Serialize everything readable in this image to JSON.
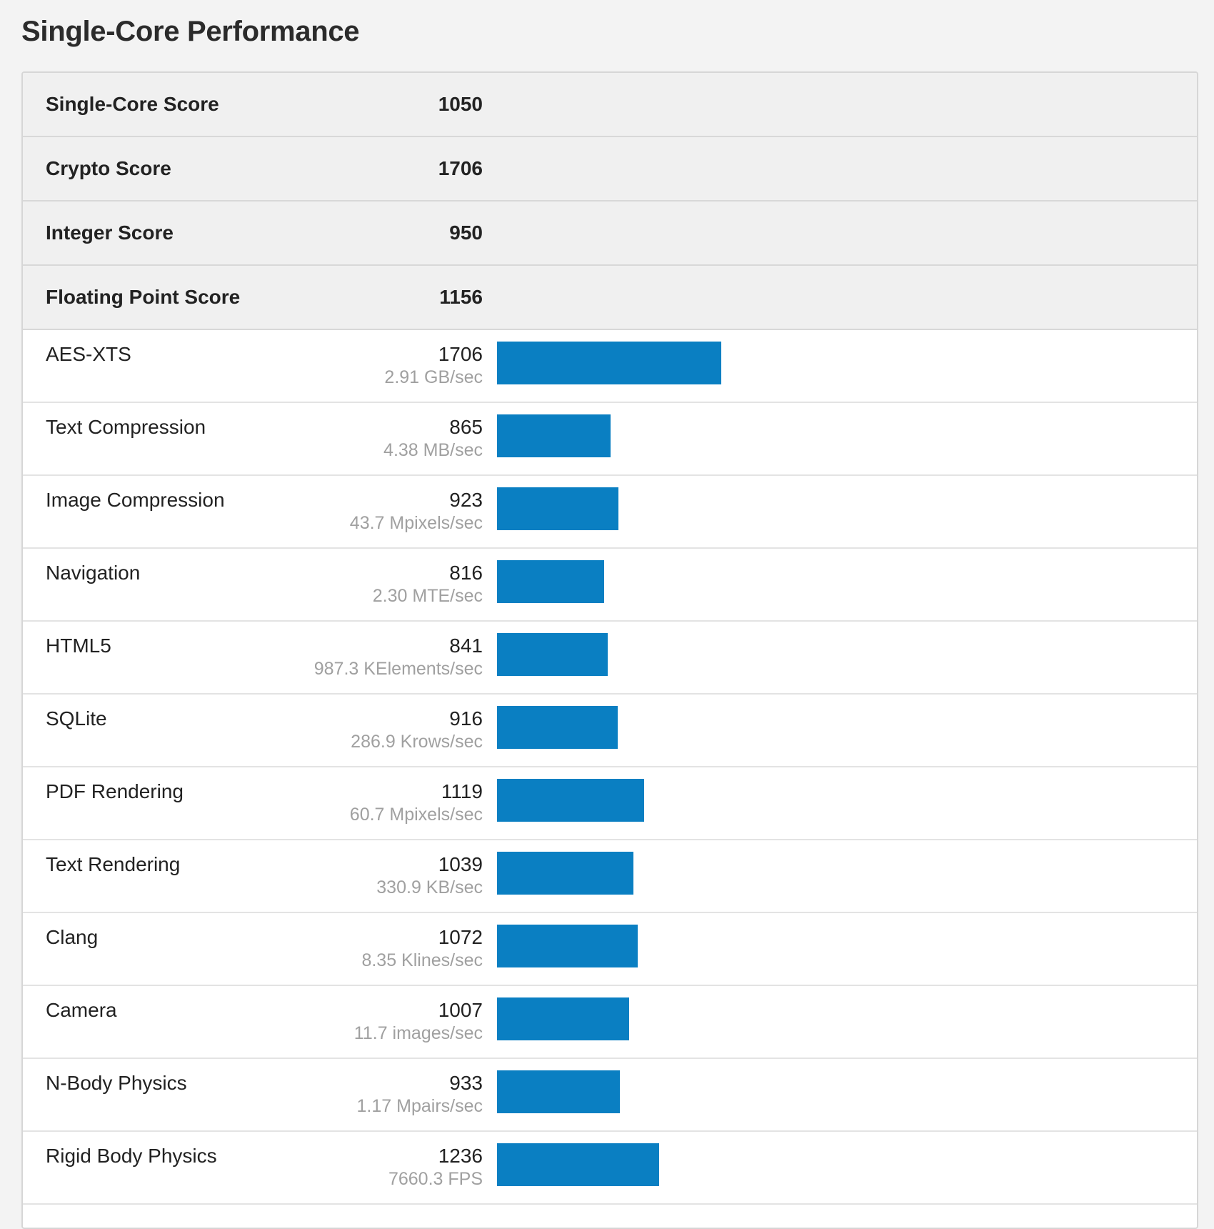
{
  "title": "Single-Core Performance",
  "accent_color": "#0a7fc2",
  "scores": [
    {
      "label": "Single-Core Score",
      "value": "1050"
    },
    {
      "label": "Crypto Score",
      "value": "1706"
    },
    {
      "label": "Integer Score",
      "value": "950"
    },
    {
      "label": "Floating Point Score",
      "value": "1156"
    }
  ],
  "benchmarks": [
    {
      "name": "AES-XTS",
      "score": "1706",
      "rate": "2.91 GB/sec",
      "bar_value": 1706
    },
    {
      "name": "Text Compression",
      "score": "865",
      "rate": "4.38 MB/sec",
      "bar_value": 865
    },
    {
      "name": "Image Compression",
      "score": "923",
      "rate": "43.7 Mpixels/sec",
      "bar_value": 923
    },
    {
      "name": "Navigation",
      "score": "816",
      "rate": "2.30 MTE/sec",
      "bar_value": 816
    },
    {
      "name": "HTML5",
      "score": "841",
      "rate": "987.3 KElements/sec",
      "bar_value": 841
    },
    {
      "name": "SQLite",
      "score": "916",
      "rate": "286.9 Krows/sec",
      "bar_value": 916
    },
    {
      "name": "PDF Rendering",
      "score": "1119",
      "rate": "60.7 Mpixels/sec",
      "bar_value": 1119
    },
    {
      "name": "Text Rendering",
      "score": "1039",
      "rate": "330.9 KB/sec",
      "bar_value": 1039
    },
    {
      "name": "Clang",
      "score": "1072",
      "rate": "8.35 Klines/sec",
      "bar_value": 1072
    },
    {
      "name": "Camera",
      "score": "1007",
      "rate": "11.7 images/sec",
      "bar_value": 1007
    },
    {
      "name": "N-Body Physics",
      "score": "933",
      "rate": "1.17 Mpairs/sec",
      "bar_value": 933
    },
    {
      "name": "Rigid Body Physics",
      "score": "1236",
      "rate": "7660.3 FPS",
      "bar_value": 1236
    }
  ]
}
